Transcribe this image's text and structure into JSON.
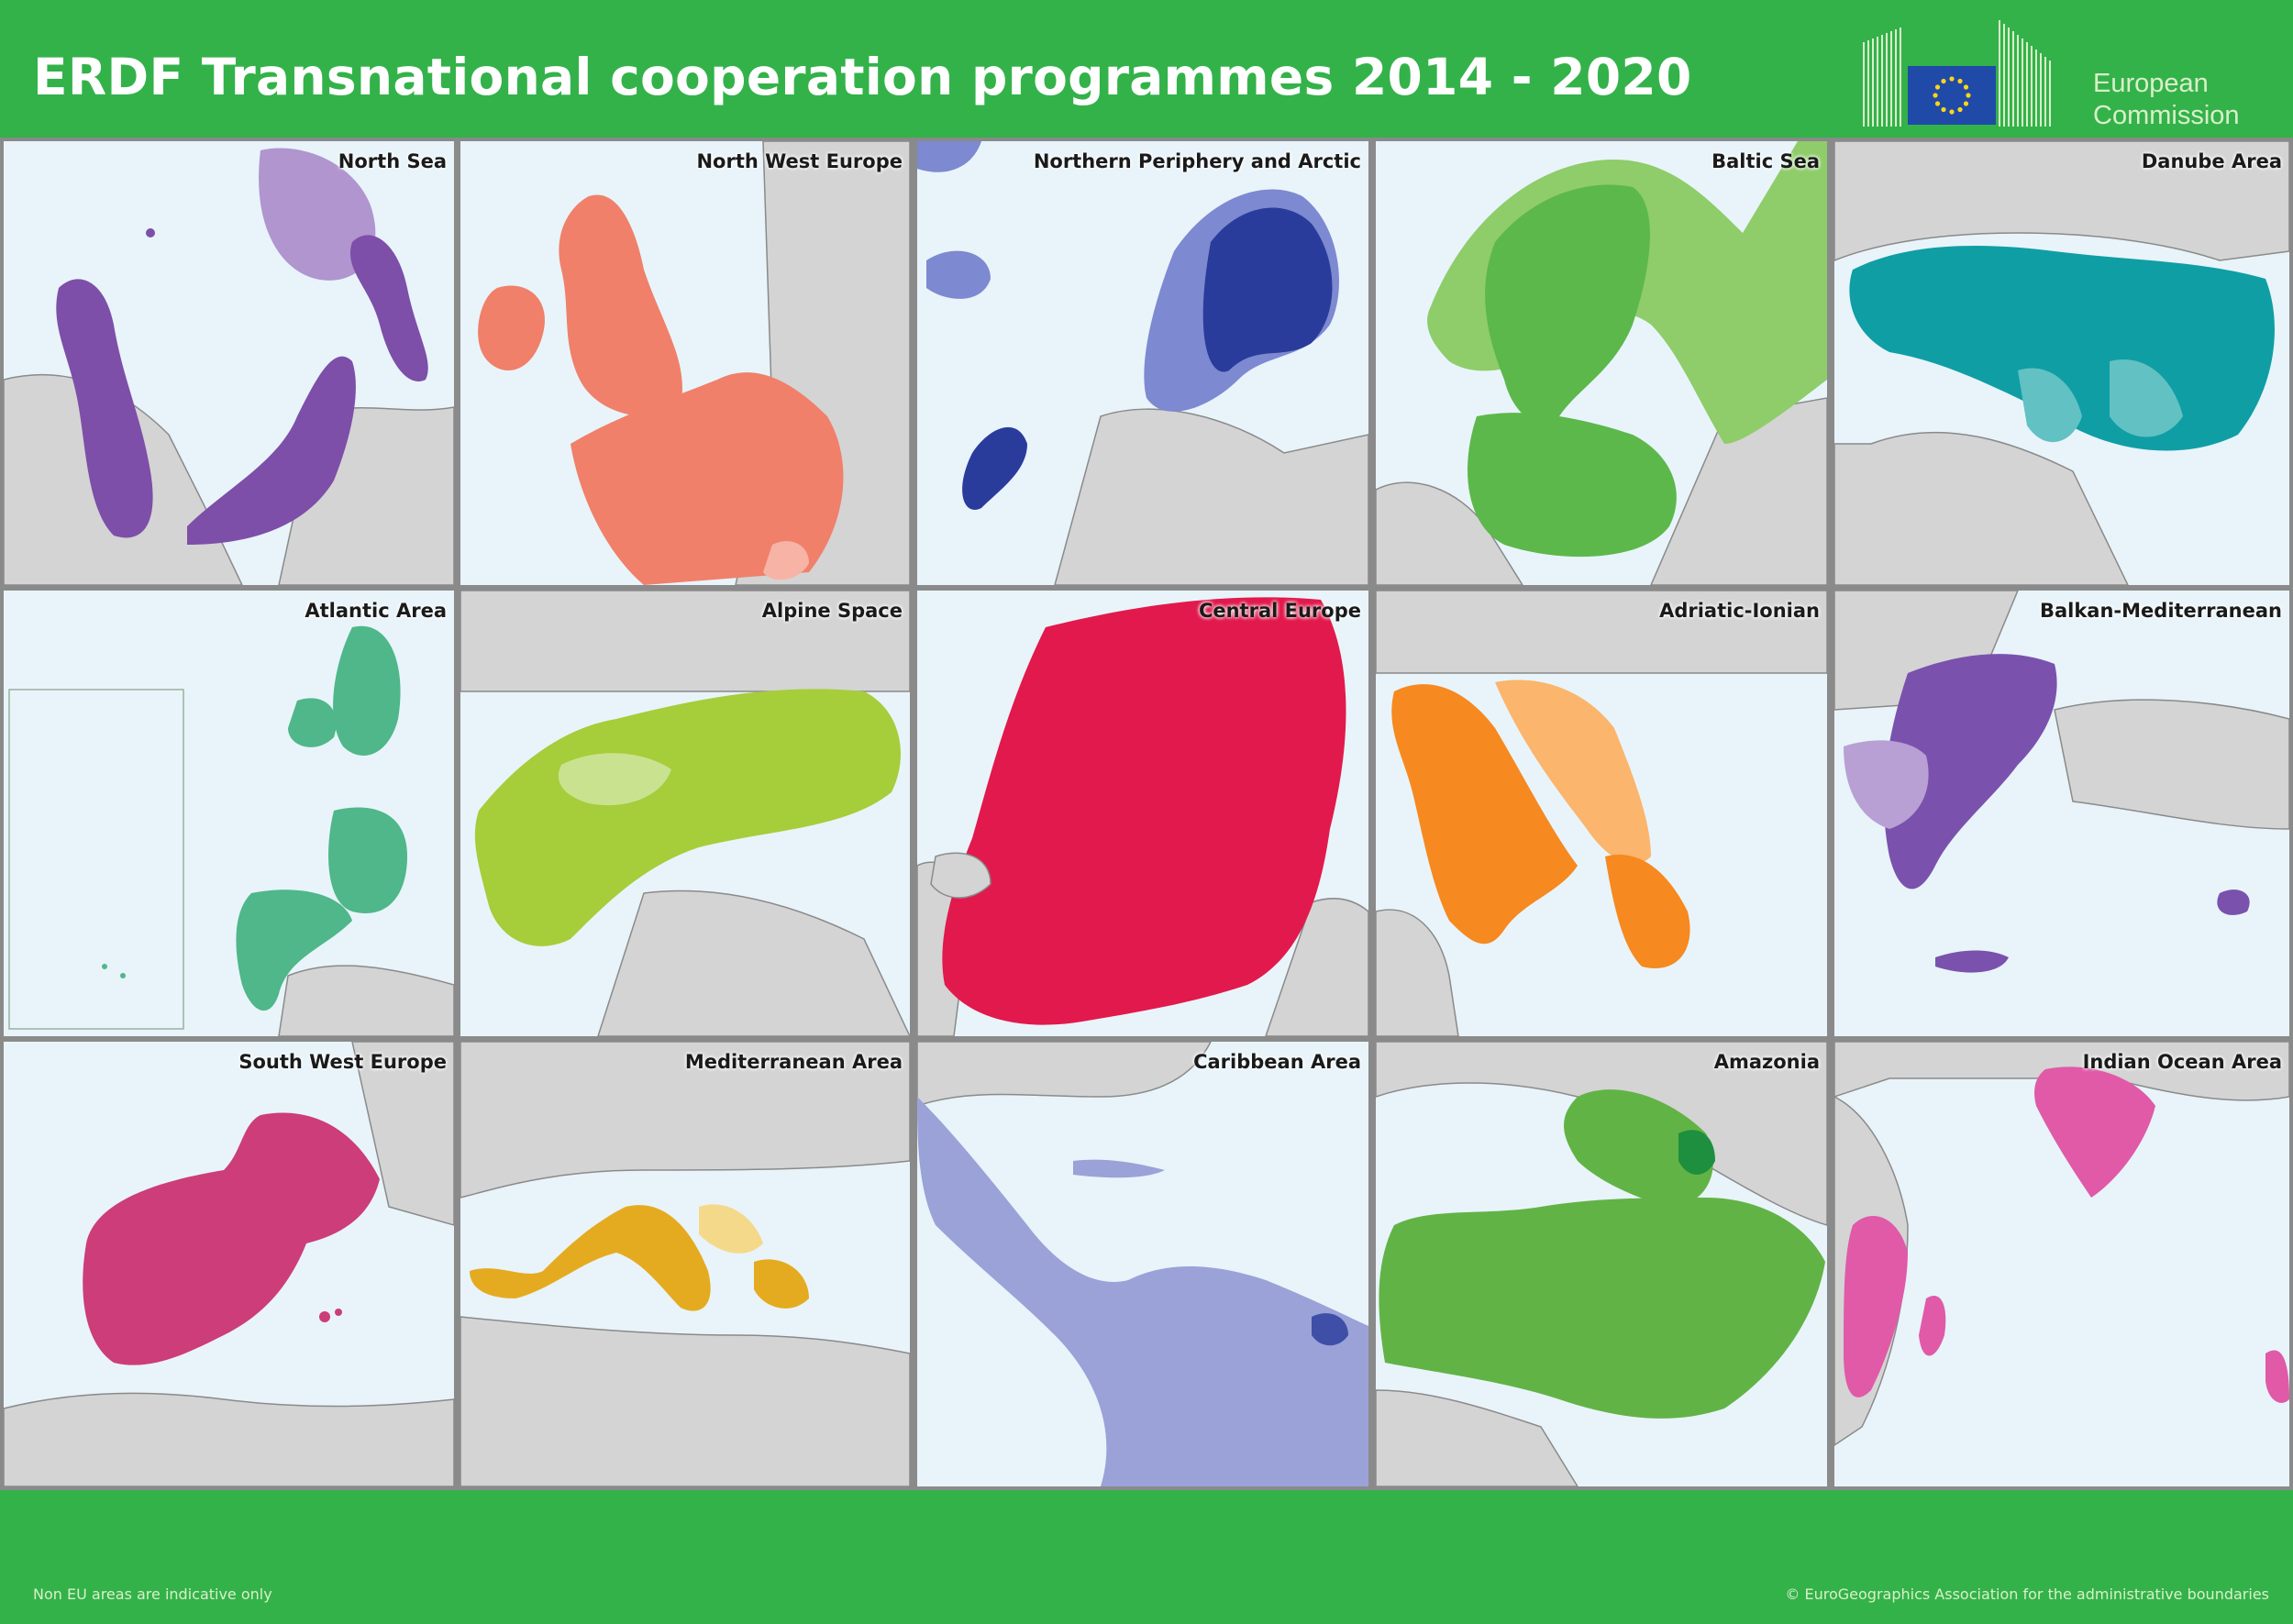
{
  "header": {
    "title": "ERDF Transnational cooperation programmes 2014 - 2020",
    "logo_line1": "European",
    "logo_line2": "Commission"
  },
  "colors": {
    "brand_green": "#33b24a",
    "sea": "#e8f4fa",
    "land": "#d4d4d4",
    "border": "#8a8a8a"
  },
  "panels": [
    {
      "name": "North Sea",
      "color": "#7d4fa8",
      "secondary": "#b095cf"
    },
    {
      "name": "North West Europe",
      "color": "#f0806a",
      "secondary": "#f7b3a5"
    },
    {
      "name": "Northern Periphery and Arctic",
      "color": "#2a3c9b",
      "secondary": "#7d89d0"
    },
    {
      "name": "Baltic Sea",
      "color": "#5cb84a",
      "secondary": "#8fcc6a"
    },
    {
      "name": "Danube Area",
      "color": "#109ea5",
      "secondary": "#62c1c3"
    },
    {
      "name": "Atlantic Area",
      "color": "#4fb78a",
      "secondary": "#86cfa9"
    },
    {
      "name": "Alpine Space",
      "color": "#a6cd3a",
      "secondary": "#c9e290"
    },
    {
      "name": "Central Europe",
      "color": "#e2194c",
      "secondary": "#ee6e8d"
    },
    {
      "name": "Adriatic-Ionian",
      "color": "#f6891f",
      "secondary": "#fbb56c"
    },
    {
      "name": "Balkan-Mediterranean",
      "color": "#7a52ad",
      "secondary": "#b8a0d4"
    },
    {
      "name": "South West Europe",
      "color": "#cc3d7a",
      "secondary": "#de7aa4"
    },
    {
      "name": "Mediterranean Area",
      "color": "#e5ab20",
      "secondary": "#f5d98a"
    },
    {
      "name": "Caribbean Area",
      "color": "#9aa2d8",
      "secondary": "#3f4fa8"
    },
    {
      "name": "Amazonia",
      "color": "#62b346",
      "secondary": "#1e8f3e"
    },
    {
      "name": "Indian Ocean Area",
      "color": "#e05aa8",
      "secondary": "#ee8fc5"
    }
  ],
  "footer": {
    "left_note": "Non EU areas are indicative only",
    "right_note": "© EuroGeographics Association for the administrative boundaries"
  }
}
